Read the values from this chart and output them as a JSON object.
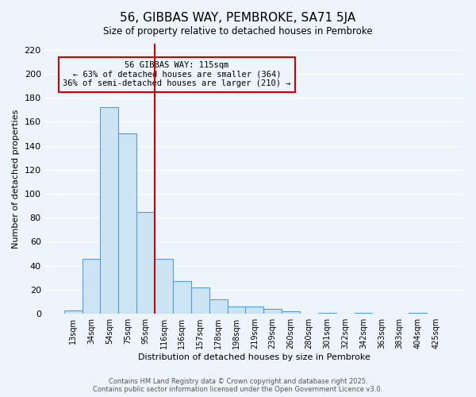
{
  "title": "56, GIBBAS WAY, PEMBROKE, SA71 5JA",
  "subtitle": "Size of property relative to detached houses in Pembroke",
  "xlabel": "Distribution of detached houses by size in Pembroke",
  "ylabel": "Number of detached properties",
  "bar_labels": [
    "13sqm",
    "34sqm",
    "54sqm",
    "75sqm",
    "95sqm",
    "116sqm",
    "136sqm",
    "157sqm",
    "178sqm",
    "198sqm",
    "219sqm",
    "239sqm",
    "260sqm",
    "280sqm",
    "301sqm",
    "322sqm",
    "342sqm",
    "363sqm",
    "383sqm",
    "404sqm",
    "425sqm"
  ],
  "bar_values": [
    3,
    46,
    172,
    150,
    85,
    46,
    27,
    22,
    12,
    6,
    6,
    4,
    2,
    0,
    1,
    0,
    1,
    0,
    0,
    1,
    0
  ],
  "bar_color": "#cce5f5",
  "bar_edgecolor": "#5b9bd5",
  "property_line_x": 5,
  "property_line_color": "#cc0000",
  "annotation_title": "56 GIBBAS WAY: 115sqm",
  "annotation_line1": "← 63% of detached houses are smaller (364)",
  "annotation_line2": "36% of semi-detached houses are larger (210) →",
  "annotation_box_edgecolor": "#cc0000",
  "ylim": [
    0,
    225
  ],
  "yticks": [
    0,
    20,
    40,
    60,
    80,
    100,
    120,
    140,
    160,
    180,
    200,
    220
  ],
  "footer_line1": "Contains HM Land Registry data © Crown copyright and database right 2025.",
  "footer_line2": "Contains public sector information licensed under the Open Government Licence v3.0.",
  "bg_color": "#eef4fb",
  "grid_color": "#ffffff"
}
